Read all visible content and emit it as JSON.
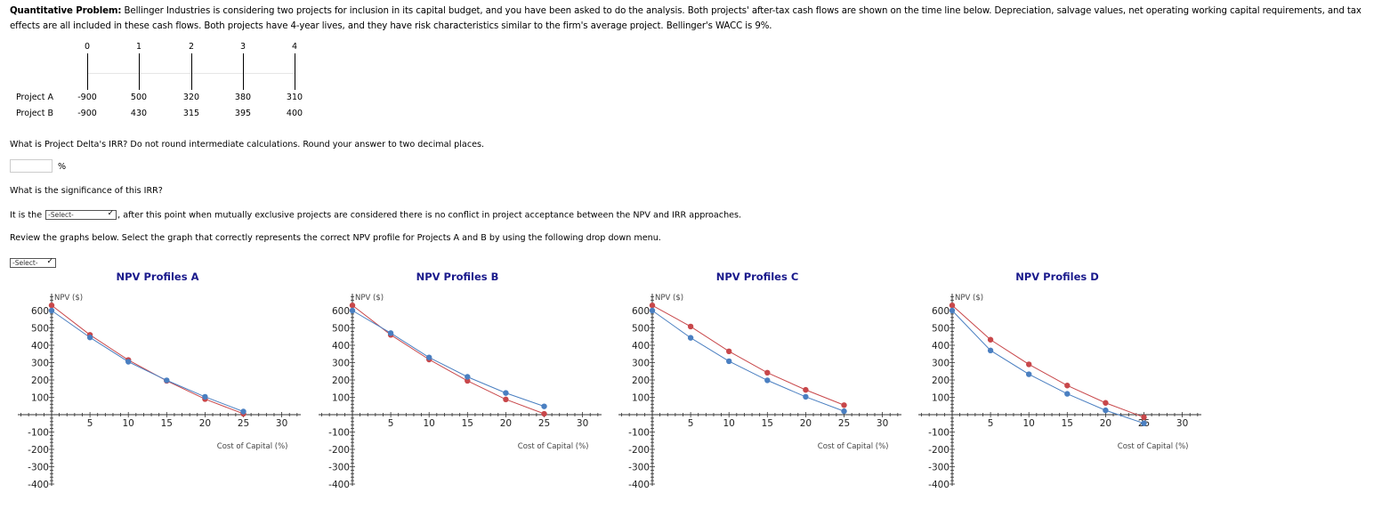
{
  "intro": {
    "label": "Quantitative Problem:",
    "text": " Bellinger Industries is considering two projects for inclusion in its capital budget, and you have been asked to do the analysis. Both projects' after-tax cash flows are shown on the time line below. Depreciation, salvage values, net operating working capital requirements, and tax effects are all included in these cash flows. Both projects have 4-year lives, and they have risk characteristics similar to the firm's average project. Bellinger's WACC is 9%."
  },
  "timeline": {
    "periods": [
      "0",
      "1",
      "2",
      "3",
      "4"
    ],
    "projects": [
      {
        "name": "Project A",
        "values": [
          "-900",
          "500",
          "320",
          "380",
          "310"
        ]
      },
      {
        "name": "Project B",
        "values": [
          "-900",
          "430",
          "315",
          "395",
          "400"
        ]
      }
    ]
  },
  "questions": {
    "irr_question": "What is Project Delta's IRR? Do not round intermediate calculations. Round your answer to two decimal places.",
    "irr_input_value": "",
    "irr_unit": "%",
    "significance_question": "What is the significance of this IRR?",
    "significance_prefix": "It is the",
    "significance_select": "-Select-",
    "significance_suffix": ", after this point when mutually exclusive projects are considered there is no conflict in project acceptance between the NPV and IRR approaches.",
    "graph_instruction": "Review the graphs below. Select the graph that correctly represents the correct NPV profile for Projects A and B by using the following drop down menu.",
    "graph_select": "-Select-"
  },
  "colors": {
    "red_series": "#c8474a",
    "blue_series": "#4a7fc1",
    "title": "#1a1a8c"
  },
  "chart_data": [
    {
      "type": "line",
      "title": "NPV Profiles A",
      "xlabel": "Cost of Capital (%)",
      "ylabel": "NPV ($)",
      "x": [
        0,
        5,
        10,
        15,
        20,
        25
      ],
      "xticks": [
        5,
        10,
        15,
        20,
        25,
        30
      ],
      "yticks": [
        600,
        500,
        400,
        300,
        200,
        100,
        -100,
        -200,
        -300,
        -400
      ],
      "xlim": [
        -5,
        32
      ],
      "ylim": [
        -400,
        680
      ],
      "series": [
        {
          "name": "red",
          "values": [
            630,
            460,
            315,
            195,
            90,
            5
          ]
        },
        {
          "name": "blue",
          "values": [
            600,
            445,
            305,
            198,
            103,
            18
          ]
        }
      ]
    },
    {
      "type": "line",
      "title": "NPV Profiles B",
      "xlabel": "Cost of Capital (%)",
      "ylabel": "NPV ($)",
      "x": [
        0,
        5,
        10,
        15,
        20,
        25
      ],
      "xticks": [
        5,
        10,
        15,
        20,
        25,
        30
      ],
      "yticks": [
        600,
        500,
        400,
        300,
        200,
        100,
        -100,
        -200,
        -300,
        -400
      ],
      "xlim": [
        -5,
        32
      ],
      "ylim": [
        -400,
        680
      ],
      "series": [
        {
          "name": "red",
          "values": [
            630,
            460,
            318,
            195,
            88,
            5
          ]
        },
        {
          "name": "blue",
          "values": [
            600,
            470,
            330,
            218,
            125,
            48
          ]
        }
      ]
    },
    {
      "type": "line",
      "title": "NPV Profiles C",
      "xlabel": "Cost of Capital (%)",
      "ylabel": "NPV ($)",
      "x": [
        0,
        5,
        10,
        15,
        20,
        25
      ],
      "xticks": [
        5,
        10,
        15,
        20,
        25,
        30
      ],
      "yticks": [
        600,
        500,
        400,
        300,
        200,
        100,
        -100,
        -200,
        -300,
        -400
      ],
      "xlim": [
        -5,
        32
      ],
      "ylim": [
        -400,
        680
      ],
      "series": [
        {
          "name": "red",
          "values": [
            630,
            508,
            365,
            242,
            143,
            55
          ]
        },
        {
          "name": "blue",
          "values": [
            600,
            443,
            308,
            198,
            103,
            20
          ]
        }
      ]
    },
    {
      "type": "line",
      "title": "NPV Profiles D",
      "xlabel": "Cost of Capital (%)",
      "ylabel": "NPV ($)",
      "x": [
        0,
        5,
        10,
        15,
        20,
        25
      ],
      "xticks": [
        5,
        10,
        15,
        20,
        25,
        30
      ],
      "yticks": [
        600,
        500,
        400,
        300,
        200,
        100,
        -100,
        -200,
        -300,
        -400
      ],
      "xlim": [
        -5,
        32
      ],
      "ylim": [
        -400,
        680
      ],
      "series": [
        {
          "name": "red",
          "values": [
            630,
            432,
            290,
            168,
            68,
            -15
          ]
        },
        {
          "name": "blue",
          "values": [
            600,
            370,
            233,
            120,
            25,
            -50
          ]
        }
      ]
    }
  ]
}
